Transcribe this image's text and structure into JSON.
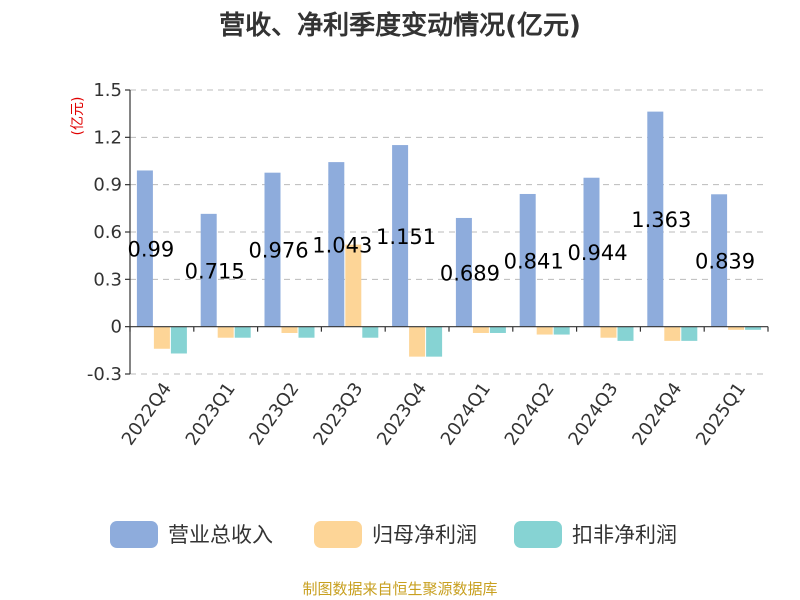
{
  "chart_data": {
    "type": "bar",
    "title": "营收、净利季度变动情况(亿元)",
    "ylabel": "(亿元)",
    "xlabel": "",
    "ylim": [
      -0.3,
      1.5
    ],
    "yticks": [
      1.5,
      1.2,
      0.9,
      0.6,
      0.3,
      0,
      -0.3
    ],
    "ytick_labels": [
      "1.5",
      "1.2",
      "0.9",
      "0.6",
      "0.3",
      "0",
      "-0.3"
    ],
    "grid": true,
    "legend_position": "bottom",
    "categories": [
      "2022Q4",
      "2023Q1",
      "2023Q2",
      "2023Q3",
      "2023Q4",
      "2024Q1",
      "2024Q2",
      "2024Q3",
      "2024Q4",
      "2025Q1"
    ],
    "series": [
      {
        "name": "营业总收入",
        "color": "#8eacdc",
        "values": [
          0.99,
          0.715,
          0.976,
          1.043,
          1.151,
          0.689,
          0.841,
          0.944,
          1.363,
          0.839
        ]
      },
      {
        "name": "归母净利润",
        "color": "#fdd597",
        "values": [
          -0.14,
          -0.07,
          -0.04,
          0.52,
          -0.19,
          -0.04,
          -0.05,
          -0.07,
          -0.09,
          -0.02
        ]
      },
      {
        "name": "扣非净利润",
        "color": "#86d3d3",
        "values": [
          -0.17,
          -0.07,
          -0.07,
          -0.07,
          -0.19,
          -0.04,
          -0.05,
          -0.09,
          -0.09,
          -0.02
        ]
      }
    ],
    "data_labels": [
      "0.99",
      "0.715",
      "0.976",
      "1.043",
      "1.151",
      "0.689",
      "0.841",
      "0.944",
      "1.363",
      "0.839"
    ]
  },
  "source": "制图数据来自恒生聚源数据库"
}
